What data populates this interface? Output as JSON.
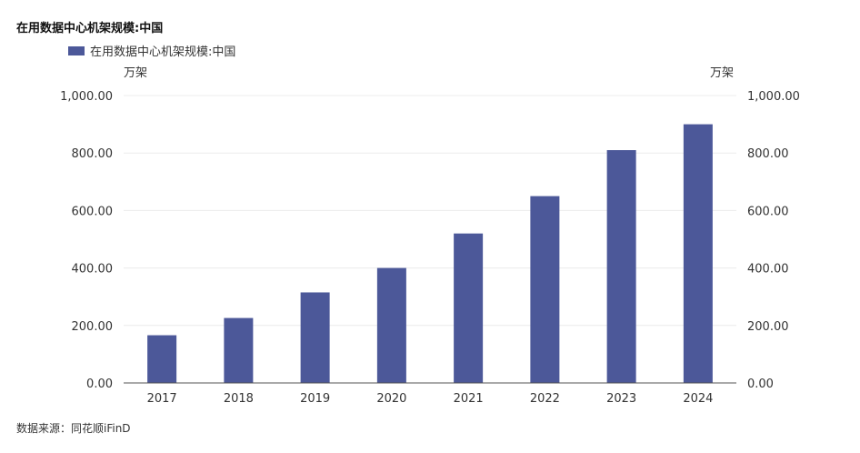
{
  "title": "在用数据中心机架规模:中国",
  "source": "数据来源：同花顺iFinD",
  "legend": {
    "label": "在用数据中心机架规模:中国"
  },
  "colors": {
    "bar": "#4C5899",
    "grid": "#ECECEC",
    "axis": "#555555"
  },
  "chart_data": {
    "type": "bar",
    "title": "在用数据中心机架规模:中国",
    "categories": [
      "2017",
      "2018",
      "2019",
      "2020",
      "2021",
      "2022",
      "2023",
      "2024"
    ],
    "series": [
      {
        "name": "在用数据中心机架规模:中国",
        "values": [
          166,
          226,
          315,
          400,
          520,
          650,
          810,
          900
        ]
      }
    ],
    "y_left": {
      "unit": "万架",
      "ylim": [
        0,
        1000
      ],
      "ticks": [
        "0.00",
        "200.00",
        "400.00",
        "600.00",
        "800.00",
        "1,000.00"
      ]
    },
    "y_right": {
      "unit": "万架",
      "ylim": [
        0,
        1000
      ],
      "ticks": [
        "0.00",
        "200.00",
        "400.00",
        "600.00",
        "800.00",
        "1,000.00"
      ]
    },
    "grid": true,
    "legend_position": "top-left"
  }
}
